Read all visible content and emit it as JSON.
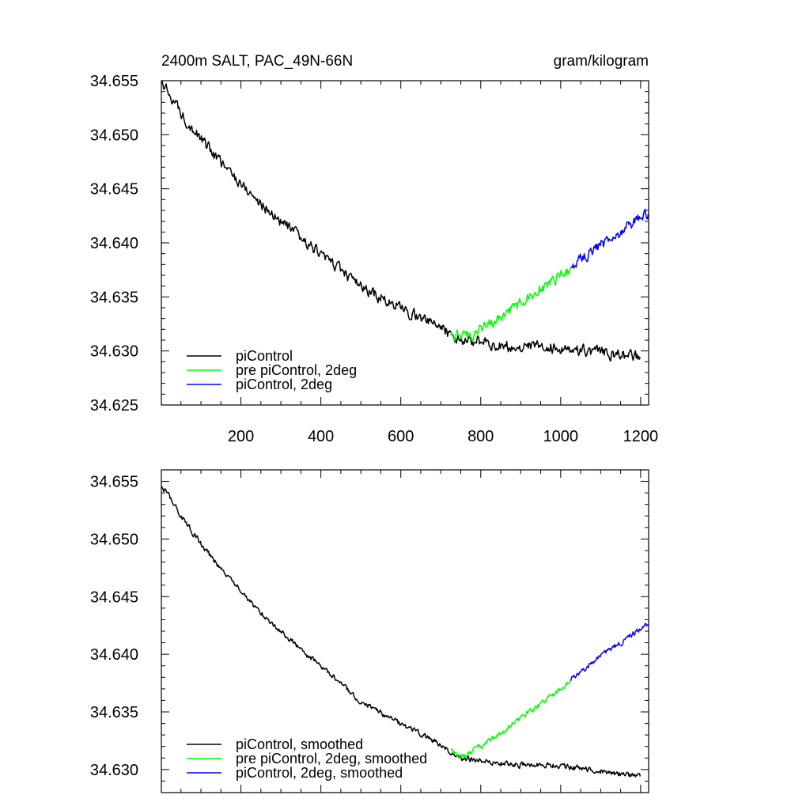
{
  "chart_data": [
    {
      "type": "line",
      "title_left": "2400m SALT, PAC_49N-66N",
      "title_right": "gram/kilogram",
      "xlim": [
        1,
        1220
      ],
      "ylim": [
        34.625,
        34.655
      ],
      "xticks": [
        200,
        400,
        600,
        800,
        1000,
        1200
      ],
      "xtick_labels": [
        "200",
        "400",
        "600",
        "800",
        "1000",
        "1200"
      ],
      "yticks": [
        34.625,
        34.63,
        34.635,
        34.64,
        34.645,
        34.65,
        34.655
      ],
      "ytick_labels": [
        "34.625",
        "34.630",
        "34.635",
        "34.640",
        "34.645",
        "34.650",
        "34.655"
      ],
      "legend_position": "bottom-left",
      "series": [
        {
          "name": "piControl",
          "color": "#000000",
          "x": [
            1,
            25,
            50,
            75,
            100,
            150,
            200,
            250,
            300,
            350,
            400,
            450,
            500,
            550,
            600,
            650,
            700,
            725,
            750,
            800,
            850,
            900,
            950,
            1000,
            1050,
            1100,
            1150,
            1200
          ],
          "y": [
            34.6548,
            34.6535,
            34.652,
            34.6508,
            34.6496,
            34.6474,
            34.6455,
            34.6436,
            34.642,
            34.6404,
            34.639,
            34.6375,
            34.6359,
            34.6349,
            34.6339,
            34.6331,
            34.6322,
            34.6315,
            34.631,
            34.6308,
            34.6305,
            34.6304,
            34.6304,
            34.6303,
            34.6301,
            34.6299,
            34.6296,
            34.6294
          ]
        },
        {
          "name": "pre piControl, 2deg",
          "color": "#00ff00",
          "x": [
            725,
            750,
            775,
            800,
            850,
            900,
            950,
            1000,
            1025
          ],
          "y": [
            34.6315,
            34.6316,
            34.6315,
            34.6321,
            34.6331,
            34.6345,
            34.6357,
            34.637,
            34.6377
          ]
        },
        {
          "name": "piControl, 2deg",
          "color": "#0000ff",
          "x": [
            1025,
            1050,
            1100,
            1150,
            1200,
            1220
          ],
          "y": [
            34.6377,
            34.6385,
            34.6398,
            34.641,
            34.6424,
            34.6427
          ]
        }
      ]
    },
    {
      "type": "line",
      "xlim": [
        1,
        1220
      ],
      "ylim": [
        34.628,
        34.656
      ],
      "xticks": [
        200,
        400,
        600,
        800,
        1000,
        1200
      ],
      "yticks": [
        34.63,
        34.635,
        34.64,
        34.645,
        34.65,
        34.655
      ],
      "ytick_labels": [
        "34.630",
        "34.635",
        "34.640",
        "34.645",
        "34.650",
        "34.655"
      ],
      "legend_position": "bottom-left",
      "series": [
        {
          "name": "piControl, smoothed",
          "color": "#000000",
          "x": [
            1,
            25,
            50,
            75,
            100,
            150,
            200,
            250,
            300,
            350,
            400,
            450,
            500,
            550,
            600,
            650,
            700,
            725,
            750,
            800,
            850,
            900,
            950,
            1000,
            1050,
            1100,
            1150,
            1200
          ],
          "y": [
            34.6546,
            34.6535,
            34.652,
            34.6508,
            34.6496,
            34.6474,
            34.6455,
            34.6436,
            34.642,
            34.6404,
            34.639,
            34.6375,
            34.6359,
            34.6349,
            34.6339,
            34.6331,
            34.6322,
            34.6315,
            34.631,
            34.6308,
            34.6305,
            34.6304,
            34.6304,
            34.6303,
            34.6301,
            34.6299,
            34.6296,
            34.6294
          ]
        },
        {
          "name": "pre piControl, 2deg, smoothed",
          "color": "#00ff00",
          "x": [
            725,
            750,
            775,
            800,
            850,
            900,
            950,
            1000,
            1025
          ],
          "y": [
            34.6318,
            34.6311,
            34.6314,
            34.632,
            34.6331,
            34.6345,
            34.6357,
            34.637,
            34.6377
          ]
        },
        {
          "name": "piControl, 2deg, smoothed",
          "color": "#0000ff",
          "x": [
            1025,
            1050,
            1100,
            1150,
            1200,
            1220
          ],
          "y": [
            34.6377,
            34.6385,
            34.6398,
            34.641,
            34.6422,
            34.6426
          ]
        }
      ]
    }
  ]
}
